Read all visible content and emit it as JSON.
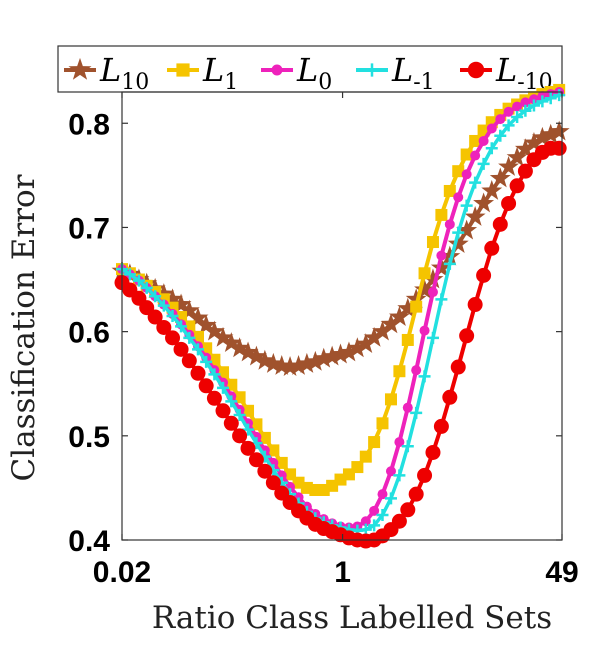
{
  "chart_data": {
    "type": "line",
    "title": "",
    "xlabel": "Ratio Class Labelled Sets",
    "ylabel": "Classification Error",
    "x_scale": "log",
    "xlim": [
      0.02,
      49
    ],
    "ylim": [
      0.4,
      0.83
    ],
    "x_ticks": [
      {
        "value": 0.02,
        "label": "0.02"
      },
      {
        "value": 1,
        "label": "1"
      },
      {
        "value": 49,
        "label": "49"
      }
    ],
    "y_ticks": [
      {
        "value": 0.4,
        "label": "0.4"
      },
      {
        "value": 0.5,
        "label": "0.5"
      },
      {
        "value": 0.6,
        "label": "0.6"
      },
      {
        "value": 0.7,
        "label": "0.7"
      },
      {
        "value": 0.8,
        "label": "0.8"
      }
    ],
    "grid": false,
    "legend_position": "top",
    "series": [
      {
        "name": "L10",
        "base": "L",
        "sub": "10",
        "color": "#a0522d",
        "marker": "star",
        "points": [
          [
            0.02,
            0.658
          ],
          [
            0.023,
            0.655
          ],
          [
            0.027,
            0.65
          ],
          [
            0.031,
            0.646
          ],
          [
            0.036,
            0.641
          ],
          [
            0.042,
            0.636
          ],
          [
            0.049,
            0.631
          ],
          [
            0.057,
            0.626
          ],
          [
            0.066,
            0.62
          ],
          [
            0.077,
            0.613
          ],
          [
            0.089,
            0.606
          ],
          [
            0.103,
            0.6
          ],
          [
            0.12,
            0.594
          ],
          [
            0.139,
            0.589
          ],
          [
            0.161,
            0.584
          ],
          [
            0.187,
            0.58
          ],
          [
            0.217,
            0.576
          ],
          [
            0.252,
            0.572
          ],
          [
            0.293,
            0.569
          ],
          [
            0.34,
            0.567
          ],
          [
            0.394,
            0.566
          ],
          [
            0.458,
            0.567
          ],
          [
            0.531,
            0.569
          ],
          [
            0.617,
            0.571
          ],
          [
            0.716,
            0.574
          ],
          [
            0.831,
            0.576
          ],
          [
            0.964,
            0.578
          ],
          [
            1.12,
            0.58
          ],
          [
            1.3,
            0.584
          ],
          [
            1.51,
            0.588
          ],
          [
            1.75,
            0.594
          ],
          [
            2.03,
            0.6
          ],
          [
            2.36,
            0.607
          ],
          [
            2.74,
            0.614
          ],
          [
            3.18,
            0.622
          ],
          [
            3.69,
            0.631
          ],
          [
            4.28,
            0.64
          ],
          [
            4.97,
            0.65
          ],
          [
            5.77,
            0.661
          ],
          [
            6.7,
            0.672
          ],
          [
            7.78,
            0.684
          ],
          [
            9.03,
            0.697
          ],
          [
            10.5,
            0.71
          ],
          [
            12.2,
            0.723
          ],
          [
            14.1,
            0.735
          ],
          [
            16.4,
            0.747
          ],
          [
            19.0,
            0.758
          ],
          [
            22.1,
            0.767
          ],
          [
            25.6,
            0.775
          ],
          [
            29.8,
            0.781
          ],
          [
            34.6,
            0.786
          ],
          [
            40.1,
            0.789
          ],
          [
            46.6,
            0.792
          ]
        ]
      },
      {
        "name": "L1",
        "base": "L",
        "sub": "1",
        "color": "#f5c400",
        "marker": "square",
        "points": [
          [
            0.02,
            0.66
          ],
          [
            0.023,
            0.656
          ],
          [
            0.027,
            0.65
          ],
          [
            0.031,
            0.644
          ],
          [
            0.036,
            0.638
          ],
          [
            0.042,
            0.631
          ],
          [
            0.049,
            0.623
          ],
          [
            0.057,
            0.614
          ],
          [
            0.066,
            0.605
          ],
          [
            0.077,
            0.595
          ],
          [
            0.089,
            0.584
          ],
          [
            0.103,
            0.573
          ],
          [
            0.12,
            0.561
          ],
          [
            0.139,
            0.549
          ],
          [
            0.161,
            0.537
          ],
          [
            0.187,
            0.524
          ],
          [
            0.217,
            0.511
          ],
          [
            0.252,
            0.498
          ],
          [
            0.293,
            0.486
          ],
          [
            0.34,
            0.474
          ],
          [
            0.394,
            0.463
          ],
          [
            0.458,
            0.455
          ],
          [
            0.531,
            0.45
          ],
          [
            0.617,
            0.448
          ],
          [
            0.716,
            0.448
          ],
          [
            0.831,
            0.452
          ],
          [
            0.964,
            0.458
          ],
          [
            1.12,
            0.463
          ],
          [
            1.3,
            0.47
          ],
          [
            1.51,
            0.48
          ],
          [
            1.75,
            0.494
          ],
          [
            2.03,
            0.512
          ],
          [
            2.36,
            0.535
          ],
          [
            2.74,
            0.562
          ],
          [
            3.18,
            0.592
          ],
          [
            3.69,
            0.624
          ],
          [
            4.28,
            0.656
          ],
          [
            4.97,
            0.686
          ],
          [
            5.77,
            0.712
          ],
          [
            6.7,
            0.735
          ],
          [
            7.78,
            0.754
          ],
          [
            9.03,
            0.77
          ],
          [
            10.5,
            0.783
          ],
          [
            12.2,
            0.793
          ],
          [
            14.1,
            0.801
          ],
          [
            16.4,
            0.808
          ],
          [
            19.0,
            0.814
          ],
          [
            22.1,
            0.818
          ],
          [
            25.6,
            0.822
          ],
          [
            29.8,
            0.825
          ],
          [
            34.6,
            0.828
          ],
          [
            40.1,
            0.83
          ],
          [
            46.6,
            0.832
          ]
        ]
      },
      {
        "name": "L0",
        "base": "L",
        "sub": "0",
        "color": "#ee22bb",
        "marker": "circle",
        "points": [
          [
            0.02,
            0.66
          ],
          [
            0.023,
            0.655
          ],
          [
            0.027,
            0.649
          ],
          [
            0.031,
            0.642
          ],
          [
            0.036,
            0.634
          ],
          [
            0.042,
            0.626
          ],
          [
            0.049,
            0.617
          ],
          [
            0.057,
            0.607
          ],
          [
            0.066,
            0.597
          ],
          [
            0.077,
            0.586
          ],
          [
            0.089,
            0.575
          ],
          [
            0.103,
            0.563
          ],
          [
            0.12,
            0.551
          ],
          [
            0.139,
            0.538
          ],
          [
            0.161,
            0.525
          ],
          [
            0.187,
            0.512
          ],
          [
            0.217,
            0.499
          ],
          [
            0.252,
            0.486
          ],
          [
            0.293,
            0.474
          ],
          [
            0.34,
            0.462
          ],
          [
            0.394,
            0.451
          ],
          [
            0.458,
            0.441
          ],
          [
            0.531,
            0.432
          ],
          [
            0.617,
            0.425
          ],
          [
            0.716,
            0.42
          ],
          [
            0.831,
            0.416
          ],
          [
            0.964,
            0.413
          ],
          [
            1.12,
            0.412
          ],
          [
            1.3,
            0.413
          ],
          [
            1.51,
            0.418
          ],
          [
            1.75,
            0.428
          ],
          [
            2.03,
            0.444
          ],
          [
            2.36,
            0.466
          ],
          [
            2.74,
            0.494
          ],
          [
            3.18,
            0.527
          ],
          [
            3.69,
            0.563
          ],
          [
            4.28,
            0.601
          ],
          [
            4.97,
            0.638
          ],
          [
            5.77,
            0.673
          ],
          [
            6.7,
            0.703
          ],
          [
            7.78,
            0.729
          ],
          [
            9.03,
            0.751
          ],
          [
            10.5,
            0.769
          ],
          [
            12.2,
            0.783
          ],
          [
            14.1,
            0.795
          ],
          [
            16.4,
            0.804
          ],
          [
            19.0,
            0.811
          ],
          [
            22.1,
            0.816
          ],
          [
            25.6,
            0.82
          ],
          [
            29.8,
            0.823
          ],
          [
            34.6,
            0.826
          ],
          [
            40.1,
            0.828
          ],
          [
            46.6,
            0.83
          ]
        ]
      },
      {
        "name": "L-1",
        "base": "L",
        "sub": "-1",
        "color": "#22e0e0",
        "marker": "plus",
        "points": [
          [
            0.02,
            0.66
          ],
          [
            0.023,
            0.655
          ],
          [
            0.027,
            0.649
          ],
          [
            0.031,
            0.642
          ],
          [
            0.036,
            0.634
          ],
          [
            0.042,
            0.625
          ],
          [
            0.049,
            0.615
          ],
          [
            0.057,
            0.605
          ],
          [
            0.066,
            0.594
          ],
          [
            0.077,
            0.583
          ],
          [
            0.089,
            0.571
          ],
          [
            0.103,
            0.559
          ],
          [
            0.12,
            0.546
          ],
          [
            0.139,
            0.533
          ],
          [
            0.161,
            0.52
          ],
          [
            0.187,
            0.506
          ],
          [
            0.217,
            0.493
          ],
          [
            0.252,
            0.48
          ],
          [
            0.293,
            0.467
          ],
          [
            0.34,
            0.455
          ],
          [
            0.394,
            0.444
          ],
          [
            0.458,
            0.435
          ],
          [
            0.531,
            0.427
          ],
          [
            0.617,
            0.421
          ],
          [
            0.716,
            0.417
          ],
          [
            0.831,
            0.414
          ],
          [
            0.964,
            0.412
          ],
          [
            1.12,
            0.41
          ],
          [
            1.3,
            0.409
          ],
          [
            1.51,
            0.41
          ],
          [
            1.75,
            0.414
          ],
          [
            2.03,
            0.424
          ],
          [
            2.36,
            0.44
          ],
          [
            2.74,
            0.462
          ],
          [
            3.18,
            0.49
          ],
          [
            3.69,
            0.522
          ],
          [
            4.28,
            0.557
          ],
          [
            4.97,
            0.594
          ],
          [
            5.77,
            0.631
          ],
          [
            6.7,
            0.665
          ],
          [
            7.78,
            0.695
          ],
          [
            9.03,
            0.721
          ],
          [
            10.5,
            0.743
          ],
          [
            12.2,
            0.761
          ],
          [
            14.1,
            0.776
          ],
          [
            16.4,
            0.788
          ],
          [
            19.0,
            0.798
          ],
          [
            22.1,
            0.806
          ],
          [
            25.6,
            0.812
          ],
          [
            29.8,
            0.817
          ],
          [
            34.6,
            0.821
          ],
          [
            40.1,
            0.824
          ],
          [
            46.6,
            0.827
          ]
        ]
      },
      {
        "name": "L-10",
        "base": "L",
        "sub": "-10",
        "color": "#ee0000",
        "marker": "circle",
        "points": [
          [
            0.02,
            0.647
          ],
          [
            0.023,
            0.64
          ],
          [
            0.027,
            0.632
          ],
          [
            0.031,
            0.623
          ],
          [
            0.036,
            0.614
          ],
          [
            0.042,
            0.604
          ],
          [
            0.049,
            0.594
          ],
          [
            0.057,
            0.583
          ],
          [
            0.066,
            0.572
          ],
          [
            0.077,
            0.56
          ],
          [
            0.089,
            0.548
          ],
          [
            0.103,
            0.536
          ],
          [
            0.12,
            0.524
          ],
          [
            0.139,
            0.512
          ],
          [
            0.161,
            0.5
          ],
          [
            0.187,
            0.488
          ],
          [
            0.217,
            0.477
          ],
          [
            0.252,
            0.466
          ],
          [
            0.293,
            0.455
          ],
          [
            0.34,
            0.445
          ],
          [
            0.394,
            0.436
          ],
          [
            0.458,
            0.428
          ],
          [
            0.531,
            0.421
          ],
          [
            0.617,
            0.415
          ],
          [
            0.716,
            0.411
          ],
          [
            0.831,
            0.408
          ],
          [
            0.964,
            0.405
          ],
          [
            1.12,
            0.402
          ],
          [
            1.3,
            0.4
          ],
          [
            1.51,
            0.399
          ],
          [
            1.75,
            0.4
          ],
          [
            2.03,
            0.404
          ],
          [
            2.36,
            0.41
          ],
          [
            2.74,
            0.418
          ],
          [
            3.18,
            0.429
          ],
          [
            3.69,
            0.444
          ],
          [
            4.28,
            0.462
          ],
          [
            4.97,
            0.484
          ],
          [
            5.77,
            0.509
          ],
          [
            6.7,
            0.537
          ],
          [
            7.78,
            0.566
          ],
          [
            9.03,
            0.596
          ],
          [
            10.5,
            0.626
          ],
          [
            12.2,
            0.654
          ],
          [
            14.1,
            0.68
          ],
          [
            16.4,
            0.703
          ],
          [
            19.0,
            0.723
          ],
          [
            22.1,
            0.74
          ],
          [
            25.6,
            0.754
          ],
          [
            29.8,
            0.765
          ],
          [
            34.6,
            0.772
          ],
          [
            40.1,
            0.776
          ],
          [
            46.6,
            0.776
          ]
        ]
      }
    ]
  }
}
